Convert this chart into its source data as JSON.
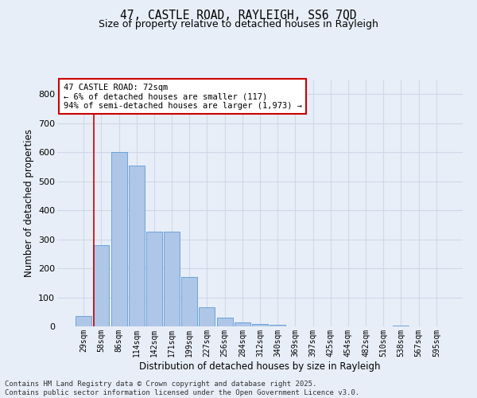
{
  "title_line1": "47, CASTLE ROAD, RAYLEIGH, SS6 7QD",
  "title_line2": "Size of property relative to detached houses in Rayleigh",
  "xlabel": "Distribution of detached houses by size in Rayleigh",
  "ylabel": "Number of detached properties",
  "footer_line1": "Contains HM Land Registry data © Crown copyright and database right 2025.",
  "footer_line2": "Contains public sector information licensed under the Open Government Licence v3.0.",
  "annotation_line1": "47 CASTLE ROAD: 72sqm",
  "annotation_line2": "← 6% of detached houses are smaller (117)",
  "annotation_line3": "94% of semi-detached houses are larger (1,973) →",
  "bar_labels": [
    "29sqm",
    "58sqm",
    "86sqm",
    "114sqm",
    "142sqm",
    "171sqm",
    "199sqm",
    "227sqm",
    "256sqm",
    "284sqm",
    "312sqm",
    "340sqm",
    "369sqm",
    "397sqm",
    "425sqm",
    "454sqm",
    "482sqm",
    "510sqm",
    "538sqm",
    "567sqm",
    "595sqm"
  ],
  "bar_values": [
    35,
    280,
    600,
    555,
    325,
    325,
    170,
    65,
    30,
    15,
    7,
    5,
    0,
    0,
    0,
    0,
    0,
    0,
    4,
    0,
    0
  ],
  "bar_color": "#aec6e8",
  "bar_edge_color": "#5b9bd5",
  "vline_color": "#cc0000",
  "vline_position": 0.575,
  "annotation_box_color": "#cc0000",
  "ylim": [
    0,
    850
  ],
  "yticks": [
    0,
    100,
    200,
    300,
    400,
    500,
    600,
    700,
    800
  ],
  "grid_color": "#d0d8e8",
  "bg_color": "#e8eef8",
  "white_bg": "#ffffff"
}
